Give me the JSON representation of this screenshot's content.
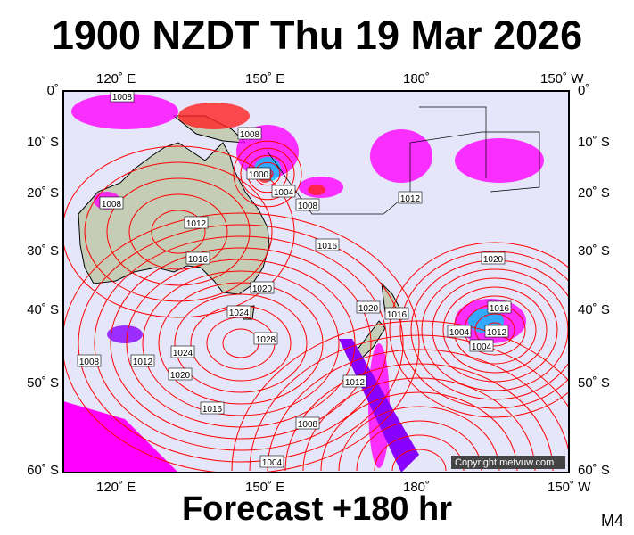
{
  "title": "1900 NZDT Thu 19 Mar 2026",
  "footer": "Forecast +180 hr",
  "model_code": "M4",
  "copyright": "Copyright metvuw.com",
  "longitude_labels": [
    "120˚ E",
    "150˚ E",
    "180˚",
    "150˚ W"
  ],
  "latitude_labels": [
    "0˚",
    "10˚ S",
    "20˚ S",
    "30˚ S",
    "40˚ S",
    "50˚ S",
    "60˚ S"
  ],
  "isobar_labels": [
    "1008",
    "1008",
    "1008",
    "1000",
    "1004",
    "1008",
    "1012",
    "1012",
    "1016",
    "1016",
    "1020",
    "1024",
    "1028",
    "1016",
    "1020",
    "1012",
    "1016",
    "1004",
    "1004",
    "1012",
    "1020",
    "1008",
    "1012",
    "1024",
    "1020",
    "1016",
    "1008",
    "1004"
  ],
  "colors": {
    "ocean": "#e6e6fa",
    "land": "#c5cdb6",
    "isobar": "#ff0000",
    "rain_light": "#ff00ff",
    "rain_mid": "#8800ff",
    "rain_heavy": "#00c8ff",
    "rain_extreme": "#ff2020"
  }
}
